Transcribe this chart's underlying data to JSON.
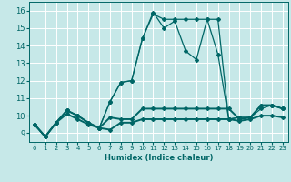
{
  "xlabel": "Humidex (Indice chaleur)",
  "ylabel": "",
  "xlim": [
    -0.5,
    23.5
  ],
  "ylim": [
    8.5,
    16.5
  ],
  "yticks": [
    9,
    10,
    11,
    12,
    13,
    14,
    15,
    16
  ],
  "xticks": [
    0,
    1,
    2,
    3,
    4,
    5,
    6,
    7,
    8,
    9,
    10,
    11,
    12,
    13,
    14,
    15,
    16,
    17,
    18,
    19,
    20,
    21,
    22,
    23
  ],
  "background_color": "#c6e8e8",
  "grid_color": "#ffffff",
  "line_color": "#006666",
  "series": [
    {
      "x": [
        0,
        1,
        2,
        3,
        4,
        5,
        6,
        7,
        8,
        9,
        10,
        11,
        12,
        13,
        14,
        15,
        16,
        17,
        18,
        19,
        20,
        21,
        22,
        23
      ],
      "y": [
        9.5,
        8.8,
        9.6,
        10.3,
        10.0,
        9.6,
        9.3,
        10.8,
        11.9,
        12.0,
        14.4,
        15.9,
        15.0,
        15.4,
        13.7,
        13.2,
        15.5,
        13.5,
        9.8,
        9.9,
        9.9,
        10.6,
        10.6,
        10.4
      ],
      "marker": "D",
      "markersize": 2.0,
      "linewidth": 0.9
    },
    {
      "x": [
        0,
        1,
        2,
        3,
        4,
        5,
        6,
        7,
        8,
        9,
        10,
        11,
        12,
        13,
        14,
        15,
        16,
        17,
        18,
        19,
        20,
        21,
        22,
        23
      ],
      "y": [
        9.5,
        8.8,
        9.6,
        10.3,
        10.0,
        9.6,
        9.3,
        9.9,
        9.8,
        9.8,
        10.4,
        10.4,
        10.4,
        10.4,
        10.4,
        10.4,
        10.4,
        10.4,
        10.4,
        9.8,
        9.9,
        10.6,
        10.6,
        10.4
      ],
      "marker": "D",
      "markersize": 2.0,
      "linewidth": 1.4
    },
    {
      "x": [
        0,
        1,
        2,
        3,
        4,
        5,
        6,
        7,
        8,
        9,
        10,
        11,
        12,
        13,
        14,
        15,
        16,
        17,
        18,
        19,
        20,
        21,
        22,
        23
      ],
      "y": [
        9.5,
        8.8,
        9.6,
        10.1,
        9.8,
        9.5,
        9.3,
        9.2,
        9.6,
        9.6,
        9.8,
        9.8,
        9.8,
        9.8,
        9.8,
        9.8,
        9.8,
        9.8,
        9.8,
        9.7,
        9.8,
        10.0,
        10.0,
        9.9
      ],
      "marker": "D",
      "markersize": 2.0,
      "linewidth": 1.4
    },
    {
      "x": [
        0,
        1,
        2,
        3,
        4,
        5,
        6,
        7,
        8,
        9,
        10,
        11,
        12,
        13,
        14,
        15,
        16,
        17,
        18,
        19,
        20,
        21,
        22,
        23
      ],
      "y": [
        9.5,
        8.8,
        9.6,
        10.3,
        10.0,
        9.6,
        9.3,
        10.8,
        11.9,
        12.0,
        14.4,
        15.8,
        15.5,
        15.5,
        15.5,
        15.5,
        15.5,
        15.5,
        9.8,
        9.9,
        9.9,
        10.4,
        10.6,
        10.4
      ],
      "marker": "D",
      "markersize": 2.0,
      "linewidth": 0.9
    }
  ]
}
